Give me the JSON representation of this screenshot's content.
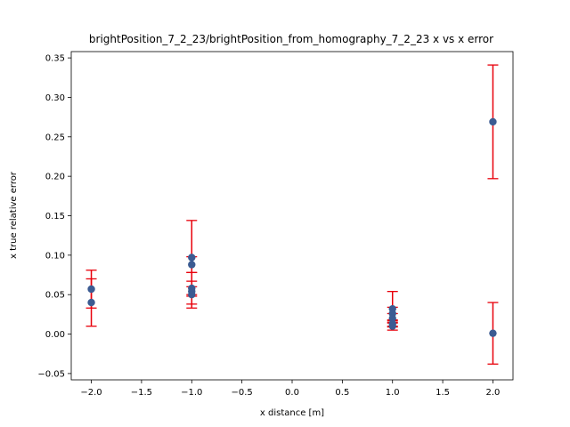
{
  "chart_data": {
    "type": "scatter",
    "title": "brightPosition_7_2_23/brightPosition_from_homography_7_2_23 x vs x error",
    "xlabel": "x distance [m]",
    "ylabel": "x true relative error",
    "xlim": [
      -2.2,
      2.2
    ],
    "ylim": [
      -0.058,
      0.358
    ],
    "x_ticks": [
      -2.0,
      -1.5,
      -1.0,
      -0.5,
      0.0,
      0.5,
      1.0,
      1.5,
      2.0
    ],
    "x_tick_labels": [
      "−2.0",
      "−1.5",
      "−1.0",
      "−0.5",
      "0.0",
      "0.5",
      "1.0",
      "1.5",
      "2.0"
    ],
    "y_ticks": [
      -0.05,
      0.0,
      0.05,
      0.1,
      0.15,
      0.2,
      0.25,
      0.3,
      0.35
    ],
    "y_tick_labels": [
      "−0.05",
      "0.00",
      "0.05",
      "0.10",
      "0.15",
      "0.20",
      "0.25",
      "0.30",
      "0.35"
    ],
    "grid": false,
    "marker_color": "#3b5b92",
    "error_color": "#e8000b",
    "points": [
      {
        "x": -2.0,
        "y": 0.057,
        "err": 0.024
      },
      {
        "x": -2.0,
        "y": 0.04,
        "err": 0.03
      },
      {
        "x": -1.0,
        "y": 0.097,
        "err": 0.047
      },
      {
        "x": -1.0,
        "y": 0.088,
        "err": 0.01
      },
      {
        "x": -1.0,
        "y": 0.058,
        "err": 0.02
      },
      {
        "x": -1.0,
        "y": 0.054,
        "err": 0.006
      },
      {
        "x": -1.0,
        "y": 0.05,
        "err": 0.017
      },
      {
        "x": 1.0,
        "y": 0.032,
        "err": 0.022
      },
      {
        "x": 1.0,
        "y": 0.026,
        "err": 0.008
      },
      {
        "x": 1.0,
        "y": 0.02,
        "err": 0.006
      },
      {
        "x": 1.0,
        "y": 0.013,
        "err": 0.004
      },
      {
        "x": 1.0,
        "y": 0.01,
        "err": 0.005
      },
      {
        "x": 2.0,
        "y": 0.269,
        "err": 0.072
      },
      {
        "x": 2.0,
        "y": 0.001,
        "err": 0.039
      }
    ]
  }
}
